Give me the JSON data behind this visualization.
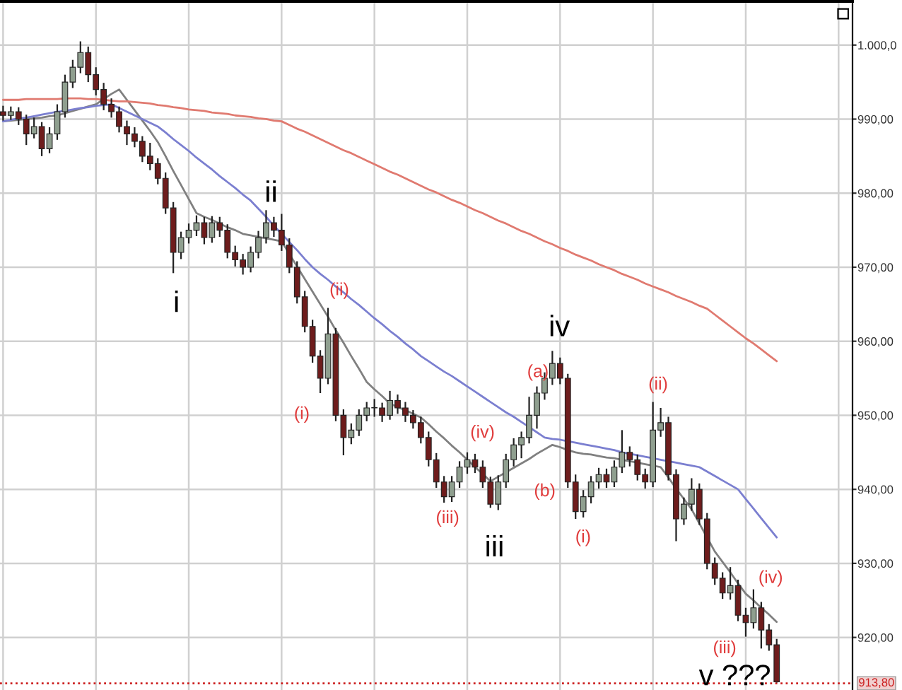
{
  "chart_data": {
    "type": "candlestick",
    "categories": [
      null,
      null,
      null,
      null,
      null,
      null,
      null,
      null,
      null,
      null,
      null,
      null,
      null,
      null,
      null,
      null,
      null,
      null,
      null,
      null,
      null,
      null,
      null,
      null,
      null,
      null,
      null,
      null,
      null,
      null,
      null,
      null,
      null,
      null,
      null,
      null,
      null,
      null,
      null,
      null,
      null,
      null,
      null,
      null,
      null,
      null,
      null,
      null,
      null,
      null,
      null,
      null,
      null,
      null,
      null,
      null,
      null,
      null,
      null,
      null,
      null,
      null,
      null,
      null,
      null,
      null,
      null,
      null,
      null,
      null,
      null,
      null,
      null,
      null,
      null,
      null,
      null,
      null,
      null,
      null,
      null,
      null,
      null,
      null,
      null,
      null,
      null,
      null,
      null,
      null,
      null,
      null,
      null,
      null,
      null,
      null,
      null,
      null,
      null,
      null,
      null
    ],
    "ohlc": [
      [
        991,
        991.8,
        989.8,
        990.5
      ],
      [
        990.5,
        991.7,
        989.9,
        991
      ],
      [
        991,
        991.6,
        989.2,
        990
      ],
      [
        990,
        990.6,
        986.5,
        988
      ],
      [
        988,
        990.2,
        987.4,
        989
      ],
      [
        989,
        989.6,
        985,
        986
      ],
      [
        986,
        988.9,
        985.4,
        988
      ],
      [
        988,
        992,
        987.2,
        991
      ],
      [
        991,
        996,
        990.2,
        995
      ],
      [
        995,
        998,
        994.2,
        997
      ],
      [
        997,
        1000.5,
        996.2,
        999
      ],
      [
        999,
        999.8,
        995,
        996
      ],
      [
        996,
        997,
        993.2,
        994
      ],
      [
        994,
        994.9,
        991.2,
        992
      ],
      [
        992,
        992.8,
        990.2,
        991
      ],
      [
        991,
        991.7,
        988.2,
        989
      ],
      [
        989,
        989.8,
        986.5,
        988
      ],
      [
        988,
        988.9,
        986.2,
        987
      ],
      [
        987,
        987.7,
        984.2,
        985
      ],
      [
        985,
        986.8,
        983.1,
        984
      ],
      [
        984,
        984.7,
        981.2,
        982
      ],
      [
        982,
        982.8,
        977.2,
        978
      ],
      [
        978,
        978.8,
        969.2,
        972
      ],
      [
        972,
        974.8,
        971.1,
        974
      ],
      [
        974,
        975.9,
        973.2,
        975
      ],
      [
        975,
        977,
        974.2,
        976
      ],
      [
        976,
        976.8,
        973.1,
        974
      ],
      [
        974,
        976.9,
        973.3,
        976
      ],
      [
        976,
        976.8,
        974.1,
        975
      ],
      [
        975,
        975.8,
        971.2,
        972
      ],
      [
        972,
        972.9,
        970.1,
        971
      ],
      [
        971,
        971.8,
        969,
        970
      ],
      [
        970,
        972.8,
        969.3,
        972
      ],
      [
        972,
        974.9,
        971.2,
        974
      ],
      [
        974,
        977.7,
        973.2,
        976
      ],
      [
        976,
        976.8,
        974.1,
        975
      ],
      [
        975,
        977.2,
        972.2,
        973
      ],
      [
        973,
        973.9,
        969.2,
        970
      ],
      [
        970,
        970.8,
        965.1,
        966
      ],
      [
        966,
        966.8,
        961.2,
        962
      ],
      [
        962,
        962.9,
        957.1,
        958
      ],
      [
        958,
        958.8,
        953,
        955
      ],
      [
        955,
        964.5,
        954.2,
        961
      ],
      [
        961,
        961.8,
        949.2,
        950
      ],
      [
        950,
        950.8,
        944.6,
        947
      ],
      [
        947,
        948.9,
        946.1,
        948
      ],
      [
        948,
        950.8,
        947.2,
        950
      ],
      [
        950,
        951.8,
        949.2,
        951
      ],
      [
        951,
        952.2,
        949.8,
        951
      ],
      [
        951,
        951.7,
        949.1,
        950
      ],
      [
        950,
        953.3,
        949.4,
        952
      ],
      [
        952,
        952.8,
        950.2,
        951
      ],
      [
        951,
        951.8,
        949.1,
        950
      ],
      [
        950,
        950.7,
        948.2,
        949
      ],
      [
        949,
        949.8,
        946.2,
        947
      ],
      [
        947,
        947.8,
        943.1,
        944
      ],
      [
        944,
        944.9,
        940.2,
        941
      ],
      [
        941,
        941.8,
        938.2,
        939
      ],
      [
        939,
        941.8,
        938.3,
        941
      ],
      [
        941,
        943.8,
        940.2,
        943
      ],
      [
        943,
        945,
        942.1,
        944
      ],
      [
        944,
        944.8,
        942.2,
        943
      ],
      [
        943,
        943.9,
        940.2,
        941
      ],
      [
        941,
        941.7,
        937.5,
        938
      ],
      [
        938,
        941.9,
        937.2,
        941
      ],
      [
        941,
        944.8,
        940.2,
        944
      ],
      [
        944,
        946.9,
        943.1,
        946
      ],
      [
        946,
        947.8,
        944.2,
        947
      ],
      [
        947,
        952.5,
        946.2,
        950
      ],
      [
        950,
        953.9,
        948.2,
        953
      ],
      [
        953,
        955.8,
        952.1,
        955
      ],
      [
        955,
        958.7,
        954.1,
        957
      ],
      [
        957,
        957.8,
        954.2,
        955
      ],
      [
        955,
        955.6,
        940.2,
        941
      ],
      [
        941,
        942,
        936,
        937
      ],
      [
        937,
        939.9,
        936.2,
        939
      ],
      [
        939,
        941.8,
        938.1,
        941
      ],
      [
        941,
        942.9,
        940.1,
        942
      ],
      [
        942,
        942.8,
        940.2,
        941
      ],
      [
        941,
        943.9,
        940.3,
        943
      ],
      [
        943,
        948,
        942.2,
        945
      ],
      [
        945,
        945.8,
        943.1,
        944
      ],
      [
        944,
        944.7,
        941.2,
        942
      ],
      [
        942,
        942.8,
        940.1,
        941
      ],
      [
        941,
        951.8,
        940.3,
        948
      ],
      [
        948,
        951,
        947.1,
        949
      ],
      [
        949,
        949.8,
        941.2,
        942
      ],
      [
        942,
        942.7,
        933,
        936
      ],
      [
        936,
        938.9,
        935.2,
        938
      ],
      [
        938,
        941.5,
        937.1,
        940
      ],
      [
        940,
        940.8,
        935.2,
        936
      ],
      [
        936,
        936.8,
        929.2,
        930
      ],
      [
        930,
        930.8,
        927.1,
        928
      ],
      [
        928,
        928.8,
        925.2,
        926
      ],
      [
        926,
        929.5,
        925.1,
        927
      ],
      [
        927,
        927.8,
        922.2,
        923
      ],
      [
        923,
        924,
        920.1,
        922
      ],
      [
        922,
        926.5,
        921.2,
        924
      ],
      [
        924,
        924.8,
        918.5,
        921
      ],
      [
        921,
        921.8,
        918.2,
        919
      ],
      [
        919,
        919.8,
        913.9,
        914
      ]
    ],
    "colors": [
      "#6e1c1c",
      "#8f9f8f",
      "#6e1c1c",
      "#6e1c1c",
      "#8f9f8f",
      "#6e1c1c",
      "#8f9f8f",
      "#8f9f8f",
      "#8f9f8f",
      "#8f9f8f",
      "#8f9f8f",
      "#6e1c1c",
      "#6e1c1c",
      "#6e1c1c",
      "#6e1c1c",
      "#6e1c1c",
      "#6e1c1c",
      "#6e1c1c",
      "#6e1c1c",
      "#6e1c1c",
      "#6e1c1c",
      "#6e1c1c",
      "#6e1c1c",
      "#8f9f8f",
      "#8f9f8f",
      "#8f9f8f",
      "#6e1c1c",
      "#8f9f8f",
      "#6e1c1c",
      "#6e1c1c",
      "#6e1c1c",
      "#6e1c1c",
      "#8f9f8f",
      "#8f9f8f",
      "#8f9f8f",
      "#6e1c1c",
      "#6e1c1c",
      "#6e1c1c",
      "#6e1c1c",
      "#6e1c1c",
      "#6e1c1c",
      "#6e1c1c",
      "#8f9f8f",
      "#6e1c1c",
      "#6e1c1c",
      "#8f9f8f",
      "#8f9f8f",
      "#8f9f8f",
      "#8f9f8f",
      "#6e1c1c",
      "#8f9f8f",
      "#6e1c1c",
      "#6e1c1c",
      "#6e1c1c",
      "#6e1c1c",
      "#6e1c1c",
      "#6e1c1c",
      "#6e1c1c",
      "#8f9f8f",
      "#8f9f8f",
      "#8f9f8f",
      "#6e1c1c",
      "#6e1c1c",
      "#6e1c1c",
      "#8f9f8f",
      "#8f9f8f",
      "#8f9f8f",
      "#8f9f8f",
      "#8f9f8f",
      "#8f9f8f",
      "#8f9f8f",
      "#8f9f8f",
      "#6e1c1c",
      "#6e1c1c",
      "#6e1c1c",
      "#8f9f8f",
      "#8f9f8f",
      "#8f9f8f",
      "#6e1c1c",
      "#8f9f8f",
      "#8f9f8f",
      "#6e1c1c",
      "#6e1c1c",
      "#6e1c1c",
      "#8f9f8f",
      "#8f9f8f",
      "#6e1c1c",
      "#6e1c1c",
      "#8f9f8f",
      "#8f9f8f",
      "#6e1c1c",
      "#6e1c1c",
      "#6e1c1c",
      "#6e1c1c",
      "#8f9f8f",
      "#6e1c1c",
      "#6e1c1c",
      "#8f9f8f",
      "#6e1c1c",
      "#6e1c1c",
      "#6e1c1c"
    ],
    "series": [
      {
        "type": "line",
        "color": "#808080",
        "values": [
          989.7,
          989.8,
          989.9,
          990,
          990.1,
          990.2,
          990.4,
          990.5,
          990.8,
          991.1,
          991.4,
          991.7,
          992,
          992.7,
          993.4,
          994,
          992.6,
          991.2,
          989.8,
          988.4,
          986.9,
          985,
          983,
          981.1,
          979.2,
          977.3,
          976.8,
          976.4,
          975.9,
          975.4,
          975,
          974.5,
          974.3,
          974.1,
          973.9,
          973.7,
          973.5,
          971.8,
          970.1,
          968.4,
          966.7,
          965,
          963.3,
          961.5,
          959.8,
          958,
          956.3,
          954.5,
          953.5,
          952.6,
          951.6,
          951.1,
          950.7,
          950.2,
          949.7,
          948.8,
          947.8,
          946.9,
          945.9,
          945,
          944,
          943,
          942.1,
          941.1,
          941.7,
          942.3,
          942.9,
          943.5,
          944.1,
          944.8,
          945.4,
          946,
          945.7,
          945.3,
          945,
          944.8,
          944.7,
          944.5,
          944.3,
          944.2,
          944,
          943.8,
          943.6,
          943.4,
          943.2,
          943,
          941.6,
          940.1,
          938.7,
          937.3,
          935.4,
          933.5,
          931.6,
          930.2,
          928.8,
          927.3,
          925.9,
          925,
          924,
          923.1,
          922.1
        ]
      },
      {
        "type": "line",
        "color": "#7b7fd0",
        "values": [
          989.7,
          989.9,
          990.1,
          990.2,
          990.4,
          990.6,
          990.8,
          991,
          991.1,
          991.3,
          991.5,
          991.6,
          991.8,
          991.9,
          992,
          991.5,
          991,
          990.5,
          990,
          989.5,
          989,
          988.2,
          987.3,
          986.5,
          985.7,
          984.8,
          984,
          983.2,
          982.3,
          981.5,
          980.7,
          979.8,
          979,
          977.9,
          976.8,
          975.6,
          974.5,
          973.4,
          972.3,
          971.1,
          970,
          969.1,
          968.3,
          967.4,
          966.6,
          965.7,
          964.9,
          964,
          963.1,
          962.3,
          961.4,
          960.6,
          959.7,
          958.9,
          958,
          957.3,
          956.6,
          955.9,
          955.3,
          954.6,
          953.9,
          953.2,
          952.5,
          951.8,
          951.1,
          950.4,
          949.8,
          949.1,
          948.4,
          947.7,
          947,
          946.8,
          946.7,
          946.5,
          946.3,
          946.1,
          945.9,
          945.7,
          945.5,
          945.3,
          945,
          944.8,
          944.6,
          944.4,
          944.2,
          944,
          943.8,
          943.6,
          943.4,
          943.2,
          943,
          942.4,
          941.8,
          941.2,
          940.6,
          940,
          938.7,
          937.4,
          936.1,
          934.8,
          933.5
        ]
      },
      {
        "type": "line",
        "color": "#e07a70",
        "values": [
          992.6,
          992.6,
          992.6,
          992.7,
          992.7,
          992.7,
          992.7,
          992.7,
          992.8,
          992.8,
          992.8,
          992.7,
          992.7,
          992.6,
          992.5,
          992.4,
          992.4,
          992.3,
          992.2,
          992.1,
          991.9,
          991.8,
          991.6,
          991.5,
          991.3,
          991.2,
          991.1,
          990.9,
          990.8,
          990.7,
          990.5,
          990.4,
          990.3,
          990.1,
          990,
          989.8,
          989.7,
          989.2,
          988.7,
          988.3,
          987.8,
          987.3,
          986.8,
          986.3,
          985.8,
          985.4,
          984.9,
          984.4,
          983.9,
          983.4,
          982.9,
          982.5,
          982,
          981.5,
          981,
          980.5,
          980.1,
          979.6,
          979.1,
          978.7,
          978.2,
          977.7,
          977.3,
          976.8,
          976.3,
          975.9,
          975.4,
          974.9,
          974.5,
          974,
          973.5,
          973.1,
          972.6,
          972.2,
          971.7,
          971.3,
          970.9,
          970.4,
          970,
          969.6,
          969.1,
          968.7,
          968.3,
          967.8,
          967.4,
          967,
          966.6,
          966.1,
          965.7,
          965.3,
          964.8,
          964.4,
          963.6,
          962.8,
          962,
          961.2,
          960.4,
          959.7,
          958.9,
          958.1,
          957.3
        ]
      }
    ],
    "annotations": [
      "i",
      "ii",
      "iii",
      "iv",
      "v ???",
      "(i)",
      "(ii)",
      "(iii)",
      "(iv)",
      "(a)",
      "(b)",
      "(i)",
      "(ii)",
      "(iii)",
      "(iv)"
    ],
    "ref_lines": [
      {
        "axis": "y",
        "value": 913.8,
        "label": "913,80",
        "color": "#cc2020",
        "line_style": "dotted"
      }
    ],
    "ylim": [
      912.9,
      1005.9
    ],
    "yticks": [
      {
        "value": 920,
        "label": "920,00"
      },
      {
        "value": 930,
        "label": "930,00"
      },
      {
        "value": 940,
        "label": "940,00"
      },
      {
        "value": 950,
        "label": "950,00"
      },
      {
        "value": 960,
        "label": "960,00"
      },
      {
        "value": 970,
        "label": "970,00"
      },
      {
        "value": 980,
        "label": "980,00"
      },
      {
        "value": 990,
        "label": "990,00"
      },
      {
        "value": 1000,
        "label": "1.000,0"
      }
    ],
    "tick_labels": "y",
    "grid": true
  }
}
